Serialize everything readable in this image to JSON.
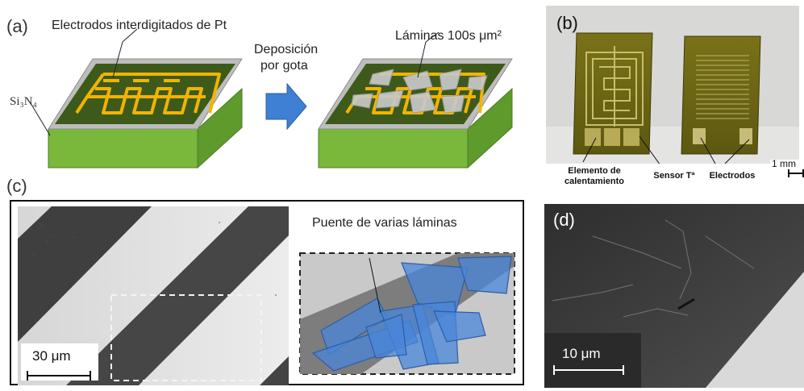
{
  "panel_a": {
    "label": "(a)",
    "electrodes_label": "Electrodos interdigitados de Pt",
    "substrate_label": "Si₃N₄",
    "arrow_label_line1": "Deposición",
    "arrow_label_line2": "por gota",
    "flakes_label": "Láminas 100s μm²"
  },
  "panel_b": {
    "label": "(b)",
    "heater_label_line1": "Elemento de",
    "heater_label_line2": "calentamiento",
    "sensor_label": "Sensor Tª",
    "electrodes_label": "Electrodos",
    "scale_label": "1 mm"
  },
  "panel_c": {
    "label": "(c)",
    "scale_label": "30 μm",
    "bridge_label": "Puente de varias láminas"
  },
  "panel_d": {
    "label": "(d)",
    "scale_label": "10 μm"
  },
  "colors": {
    "chip_top": "#3d5a1a",
    "chip_side": "#7ab83c",
    "frame": "#b9b9b9",
    "electrode": "#f2b400",
    "arrow": "#3f7fd4",
    "flake_blue": "#4a86d8"
  }
}
